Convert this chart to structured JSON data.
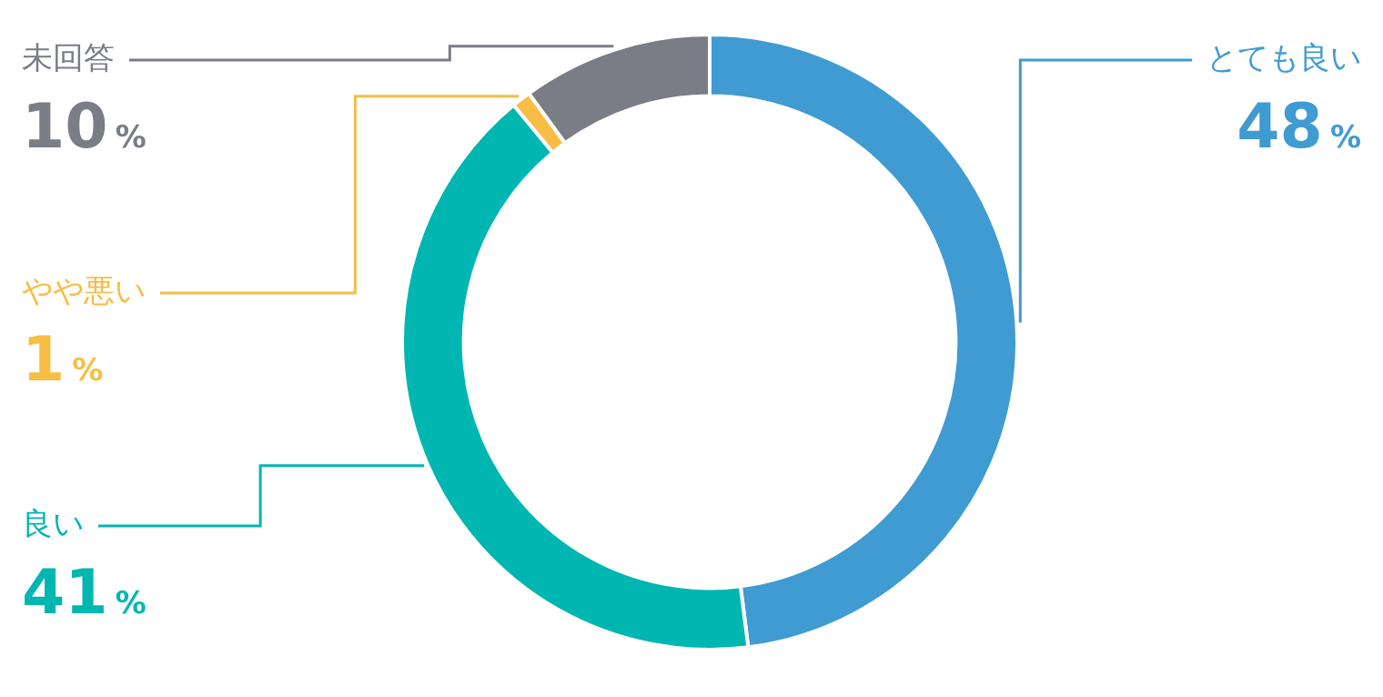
{
  "chart_data": {
    "type": "donut",
    "categories": [
      "とても良い",
      "良い",
      "やや悪い",
      "未回答"
    ],
    "values": [
      48,
      41,
      1,
      10
    ],
    "colors": [
      "#3f9bd2",
      "#00b6b1",
      "#f7bd45",
      "#7a7d86"
    ],
    "value_labels": [
      "48%",
      "41%",
      "1%",
      "10%"
    ],
    "legend": false
  }
}
